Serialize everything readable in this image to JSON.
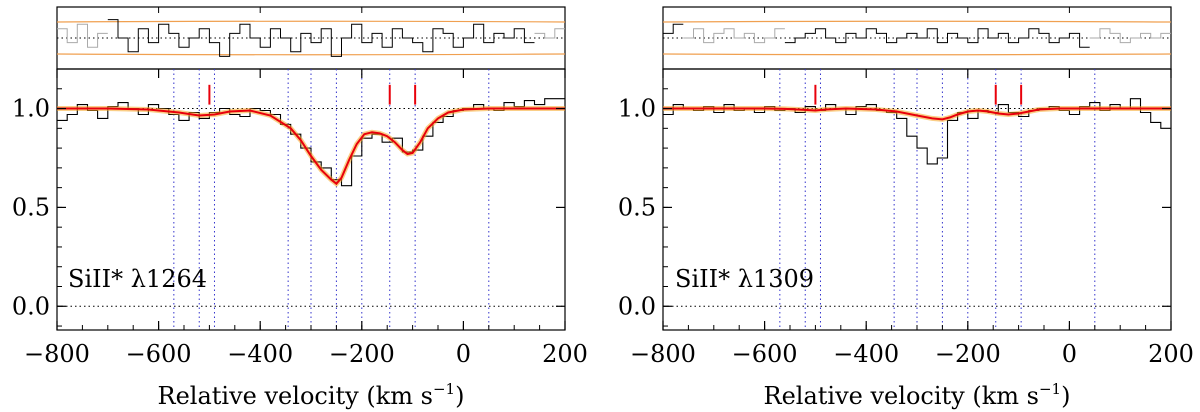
{
  "chart_data": [
    {
      "type": "line",
      "label": "SiII* λ1264",
      "xlabel": "Relative velocity (km s",
      "xlabel_sup": "−1",
      "xlim": [
        -800,
        200
      ],
      "ylim": [
        -0.12,
        1.2
      ],
      "x_ticks": [
        -800,
        -600,
        -400,
        -200,
        0,
        200
      ],
      "x_tick_labels": [
        "−800",
        "−600",
        "−400",
        "−200",
        "0",
        "200"
      ],
      "y_ticks": [
        0.0,
        0.5,
        1.0
      ],
      "y_tick_labels": [
        "0.0",
        "0.5",
        "1.0"
      ],
      "blue_dotted_lines": [
        -570,
        -520,
        -490,
        -345,
        -300,
        -250,
        -200,
        -145,
        -95,
        50
      ],
      "red_tick_marks": [
        -500,
        -145,
        -95
      ],
      "series": [
        {
          "kind": "flux-histogram",
          "color": "#000000",
          "x": [
            -800,
            -780,
            -760,
            -740,
            -720,
            -700,
            -680,
            -660,
            -640,
            -620,
            -600,
            -580,
            -560,
            -540,
            -520,
            -500,
            -480,
            -460,
            -440,
            -420,
            -400,
            -380,
            -360,
            -340,
            -320,
            -300,
            -280,
            -260,
            -240,
            -220,
            -200,
            -180,
            -160,
            -140,
            -120,
            -100,
            -80,
            -60,
            -40,
            -20,
            0,
            20,
            40,
            60,
            80,
            100,
            120,
            140,
            160,
            180
          ],
          "y": [
            0.94,
            0.97,
            1.02,
            0.99,
            0.95,
            1.01,
            1.03,
            1.0,
            0.97,
            1.02,
            1.0,
            0.97,
            0.94,
            0.98,
            0.95,
            0.98,
            1.0,
            0.97,
            0.96,
            1.0,
            0.99,
            0.97,
            0.92,
            0.87,
            0.8,
            0.73,
            0.7,
            0.64,
            0.61,
            0.76,
            0.85,
            0.87,
            0.83,
            0.85,
            0.78,
            0.79,
            0.86,
            0.93,
            0.96,
            0.99,
            1.0,
            1.02,
            1.0,
            0.99,
            1.03,
            1.01,
            1.04,
            1.02,
            1.05,
            1.05
          ]
        },
        {
          "kind": "model-fit",
          "color": "#e8000b",
          "x": [
            -800,
            -700,
            -620,
            -560,
            -520,
            -490,
            -460,
            -420,
            -380,
            -340,
            -320,
            -300,
            -280,
            -260,
            -250,
            -240,
            -225,
            -210,
            -195,
            -180,
            -165,
            -150,
            -135,
            -120,
            -110,
            -100,
            -85,
            -70,
            -50,
            -30,
            0,
            50,
            100,
            200
          ],
          "y": [
            1.0,
            1.0,
            0.995,
            0.98,
            0.965,
            0.97,
            0.985,
            0.99,
            0.965,
            0.9,
            0.84,
            0.76,
            0.69,
            0.64,
            0.62,
            0.65,
            0.74,
            0.82,
            0.87,
            0.88,
            0.875,
            0.86,
            0.83,
            0.79,
            0.77,
            0.775,
            0.83,
            0.9,
            0.95,
            0.98,
            0.995,
            1.0,
            1.0,
            1.0
          ]
        }
      ],
      "residual_panel": {
        "black_steps": [
          0.3,
          0.6,
          0.2,
          0.7,
          0.4,
          0.1,
          0.5,
          0.8,
          0.3,
          0.6,
          0.2,
          0.4,
          0.7,
          0.5,
          0.3,
          0.6,
          0.9,
          0.4,
          0.2,
          0.5,
          0.7,
          0.3,
          0.5,
          0.8,
          0.4,
          0.6,
          0.3,
          0.9,
          0.5,
          0.2,
          0.6,
          0.4,
          0.7,
          0.3,
          0.5,
          0.6,
          0.8,
          0.3,
          0.4,
          0.7,
          0.5,
          0.2,
          0.6,
          0.4,
          0.5,
          0.3,
          0.6,
          0.4,
          0.5,
          0.3
        ],
        "gray_regions": [
          [
            -800,
            -700
          ],
          [
            140,
            200
          ]
        ]
      }
    },
    {
      "type": "line",
      "label": "SiII* λ1309",
      "xlabel": "Relative velocity (km s",
      "xlabel_sup": "−1",
      "xlim": [
        -800,
        200
      ],
      "ylim": [
        -0.12,
        1.2
      ],
      "x_ticks": [
        -800,
        -600,
        -400,
        -200,
        0,
        200
      ],
      "x_tick_labels": [
        "−800",
        "−600",
        "−400",
        "−200",
        "0",
        "200"
      ],
      "y_ticks": [
        0.0,
        0.5,
        1.0
      ],
      "y_tick_labels": [
        "0.0",
        "0.5",
        "1.0"
      ],
      "blue_dotted_lines": [
        -570,
        -520,
        -490,
        -345,
        -300,
        -250,
        -200,
        -145,
        -95,
        50
      ],
      "red_tick_marks": [
        -500,
        -145,
        -95
      ],
      "series": [
        {
          "kind": "flux-histogram",
          "color": "#000000",
          "x": [
            -800,
            -780,
            -760,
            -740,
            -720,
            -700,
            -680,
            -660,
            -640,
            -620,
            -600,
            -580,
            -560,
            -540,
            -520,
            -500,
            -480,
            -460,
            -440,
            -420,
            -400,
            -380,
            -360,
            -340,
            -320,
            -300,
            -280,
            -260,
            -240,
            -220,
            -200,
            -180,
            -160,
            -140,
            -120,
            -100,
            -80,
            -60,
            -40,
            -20,
            0,
            20,
            40,
            60,
            80,
            100,
            120,
            140,
            160,
            180
          ],
          "y": [
            0.97,
            1.02,
            1.0,
            0.99,
            1.01,
            0.98,
            1.02,
            0.99,
            1.0,
            0.98,
            1.01,
            0.99,
            1.0,
            0.98,
            1.01,
            0.99,
            1.02,
            1.0,
            0.97,
            1.01,
            1.02,
            0.99,
            0.98,
            0.95,
            0.86,
            0.8,
            0.72,
            0.75,
            0.94,
            0.98,
            0.95,
            0.99,
            0.98,
            1.02,
            0.98,
            0.96,
            0.99,
            1.0,
            1.01,
            0.99,
            0.97,
            1.01,
            1.03,
            0.99,
            1.02,
            1.0,
            1.05,
            0.98,
            0.93,
            0.9
          ]
        },
        {
          "kind": "model-fit",
          "color": "#e8000b",
          "x": [
            -800,
            -600,
            -560,
            -520,
            -500,
            -480,
            -440,
            -380,
            -340,
            -300,
            -270,
            -250,
            -235,
            -220,
            -200,
            -180,
            -160,
            -140,
            -120,
            -100,
            -80,
            -60,
            -20,
            50,
            200
          ],
          "y": [
            1.0,
            1.0,
            0.998,
            0.993,
            0.99,
            0.995,
            1.0,
            0.995,
            0.985,
            0.965,
            0.95,
            0.945,
            0.955,
            0.97,
            0.985,
            0.99,
            0.985,
            0.975,
            0.97,
            0.975,
            0.985,
            0.995,
            1.0,
            1.0,
            1.0
          ]
        }
      ],
      "residual_panel": {
        "black_steps": [
          0.4,
          0.2,
          0.5,
          0.3,
          0.6,
          0.4,
          0.3,
          0.5,
          0.4,
          0.6,
          0.5,
          0.3,
          0.6,
          0.5,
          0.4,
          0.3,
          0.5,
          0.6,
          0.4,
          0.5,
          0.3,
          0.4,
          0.6,
          0.5,
          0.4,
          0.5,
          0.3,
          0.6,
          0.4,
          0.5,
          0.6,
          0.3,
          0.5,
          0.4,
          0.6,
          0.5,
          0.3,
          0.4,
          0.6,
          0.5,
          0.4,
          0.7,
          0.5,
          0.3,
          0.4,
          0.6,
          0.5,
          0.4,
          0.5,
          0.4
        ],
        "gray_regions": [
          [
            -760,
            -560
          ],
          [
            40,
            200
          ]
        ]
      }
    }
  ],
  "colors": {
    "flux": "#000000",
    "model": "#e8000b",
    "model_band": "#f5a623",
    "residual_band": "#f0a050",
    "marker_lines": "#3333cc",
    "gray_data": "#aaaaaa"
  }
}
